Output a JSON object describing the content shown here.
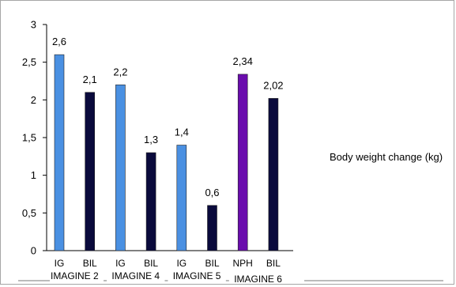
{
  "chart_data": {
    "type": "bar",
    "categories": [
      "IG",
      "BIL",
      "IG",
      "BIL",
      "IG",
      "BIL",
      "NPH",
      "BIL"
    ],
    "values": [
      2.6,
      2.1,
      2.2,
      1.3,
      1.4,
      0.6,
      2.34,
      2.02
    ],
    "data_labels": [
      "2,6",
      "2,1",
      "2,2",
      "1,3",
      "1,4",
      "0,6",
      "2,34",
      "2,02"
    ],
    "bar_colors": [
      "#4a90e2",
      "#0a0a3c",
      "#4a90e2",
      "#0a0a3c",
      "#4a90e2",
      "#0a0a3c",
      "#6a0dad",
      "#0a0a3c"
    ],
    "groups": [
      {
        "label": "IMAGINE 2",
        "categories": 2
      },
      {
        "label": "IMAGINE 4",
        "categories": 2
      },
      {
        "label": "IMAGINE 5",
        "categories": 2
      },
      {
        "label": "IMAGINE 6",
        "categories": 2
      }
    ],
    "yticks": [
      "0",
      "0,5",
      "1",
      "1,5",
      "2",
      "2,5",
      "3"
    ],
    "ylim": [
      0,
      3
    ],
    "legend": "Body weight change (kg)",
    "legend_position": "right",
    "grid": false
  }
}
